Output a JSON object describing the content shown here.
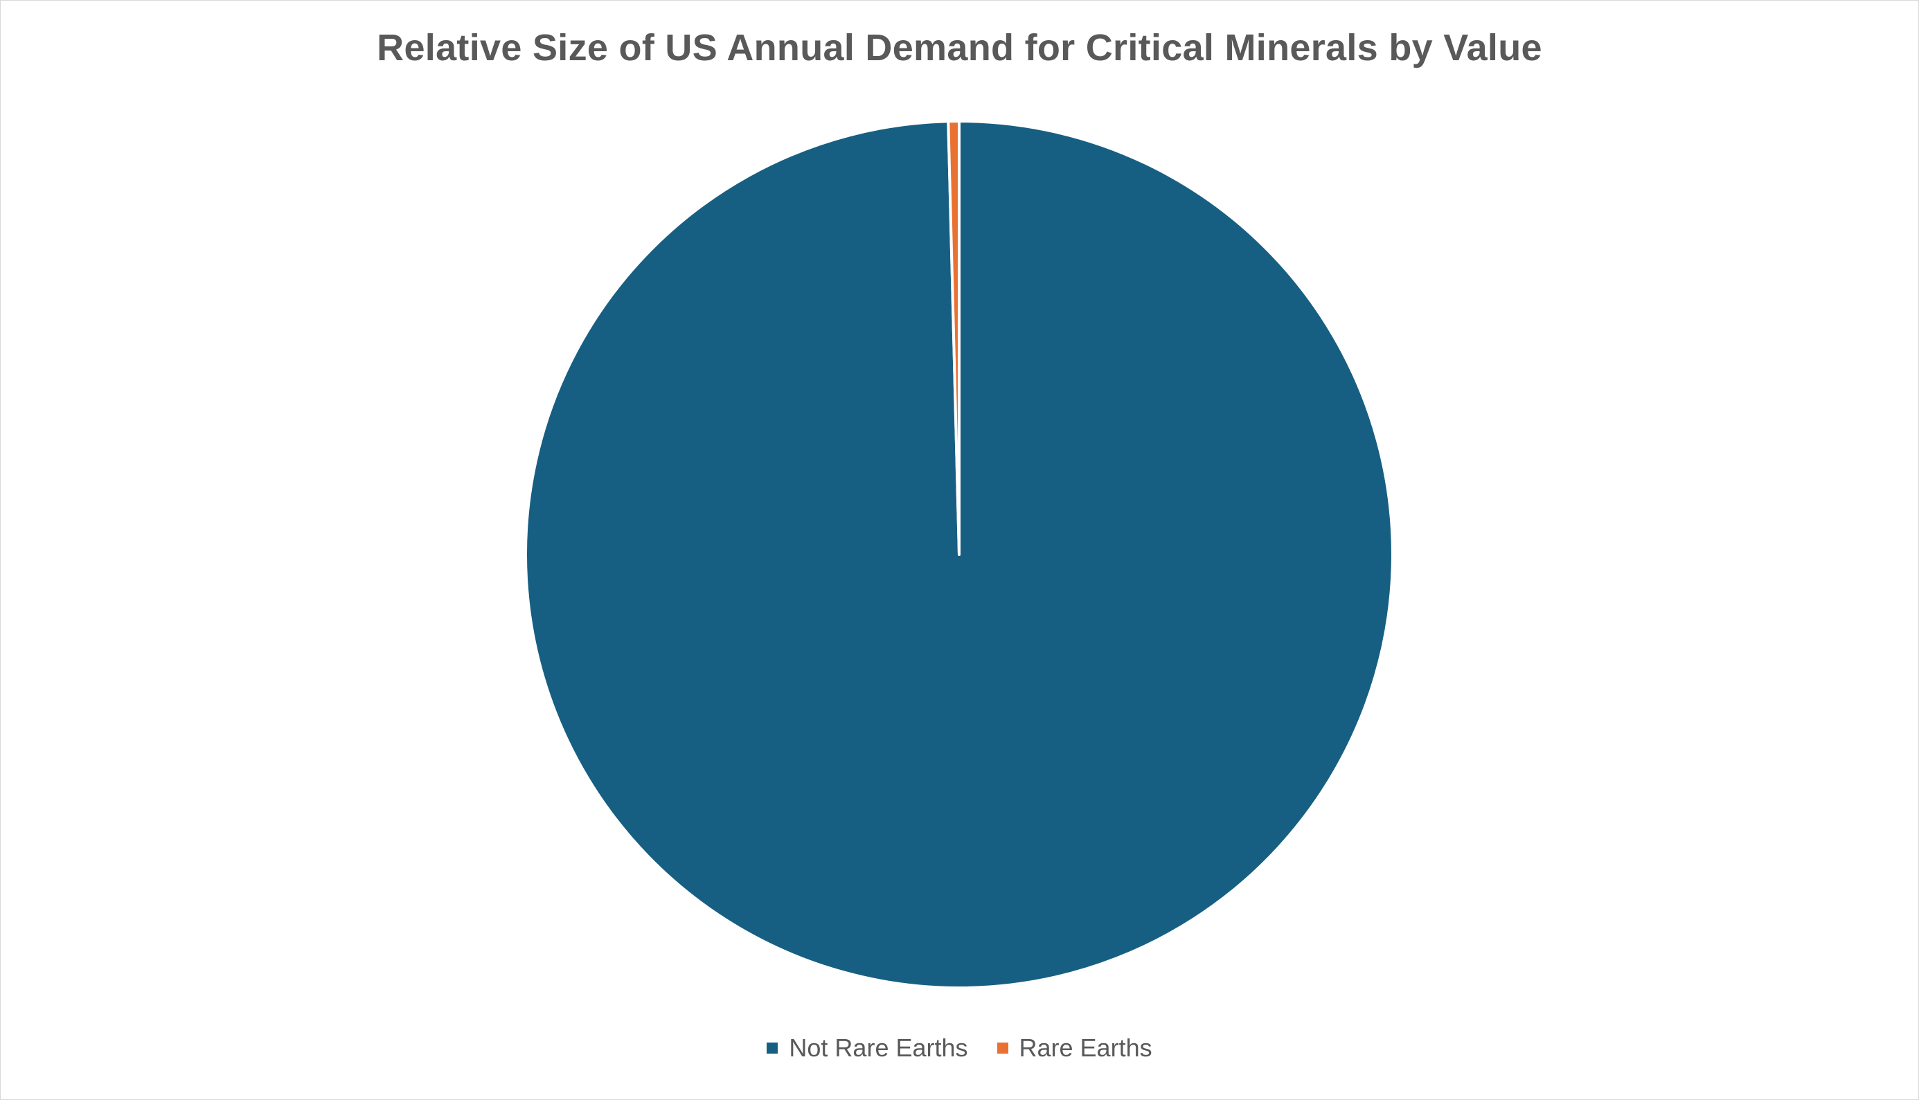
{
  "chart_data": {
    "type": "pie",
    "title": "Relative Size of US Annual Demand for Critical Minerals by Value",
    "unit": "percent",
    "slices": [
      {
        "label": "Not Rare Earths",
        "value": 99.6,
        "color": "#175F82"
      },
      {
        "label": "Rare Earths",
        "value": 0.4,
        "color": "#E97132"
      }
    ],
    "start_angle": "12 o'clock",
    "direction": "clockwise",
    "slice_border_color": "#ffffff",
    "legend_position": "bottom"
  }
}
